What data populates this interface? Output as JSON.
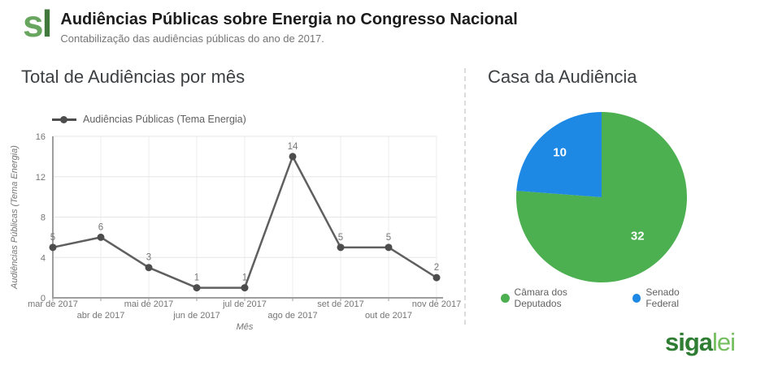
{
  "header": {
    "logo_s": "s",
    "logo_l": "l",
    "title": "Audiências Públicas sobre Energia no Congresso Nacional",
    "subtitle": "Contabilização das audiências públicas do ano de 2017."
  },
  "left_panel": {
    "title": "Total de Audiências por mês"
  },
  "right_panel": {
    "title": "Casa da Audiência"
  },
  "footer": {
    "logo_siga": "siga",
    "logo_lei": "lei"
  },
  "colors": {
    "logo_s": "#68A55F",
    "logo_l": "#41793D",
    "siga": "#2E7D32",
    "lei": "#74BE5F",
    "line_series": "#5F5F5F",
    "point_fill": "#4D4D4D",
    "pie_green": "#4CAF50",
    "pie_blue": "#1E88E5"
  },
  "chart_data": [
    {
      "type": "line",
      "title": "Total de Audiências por mês",
      "series_label": "Audiências Públicas (Tema Energia)",
      "x": [
        "mar de 2017",
        "abr de 2017",
        "mai de 2017",
        "jun de 2017",
        "jul de 2017",
        "ago de 2017",
        "set de 2017",
        "out de 2017",
        "nov de 2017"
      ],
      "values": [
        5,
        6,
        3,
        1,
        1,
        14,
        5,
        5,
        2
      ],
      "xlabel": "Mês",
      "ylabel": "Audiências Públicas (Tema Energia)",
      "ylim": [
        0,
        16
      ],
      "yticks": [
        0,
        4,
        8,
        12,
        16
      ],
      "line_color": "#5F5F5F",
      "grid": true,
      "legend_position": "top"
    },
    {
      "type": "pie",
      "title": "Casa da Audiência",
      "slices": [
        {
          "label": "Câmara dos Deputados",
          "value": 32,
          "color": "#4CAF50"
        },
        {
          "label": "Senado Federal",
          "value": 10,
          "color": "#1E88E5"
        }
      ],
      "legend_position": "bottom"
    }
  ]
}
